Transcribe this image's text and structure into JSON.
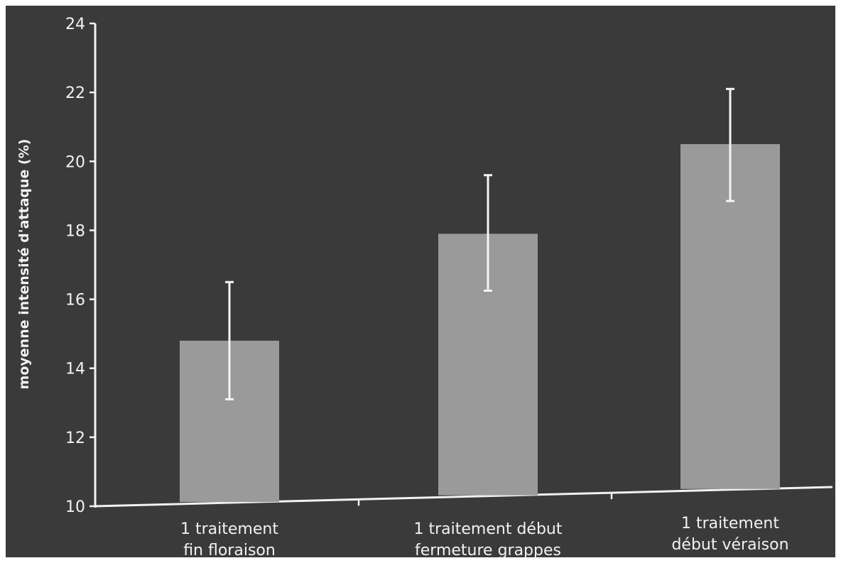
{
  "chart_data": {
    "type": "bar",
    "title": "",
    "ylabel": "moyenne intensité d'attaque (%)",
    "xlabel": "",
    "ylim": [
      10,
      24
    ],
    "yticks": [
      10,
      12,
      14,
      16,
      18,
      20,
      22,
      24
    ],
    "grid": false,
    "categories": [
      [
        "1 traitement",
        "fin floraison"
      ],
      [
        "1 traitement début",
        "fermeture grappes"
      ],
      [
        "1 traitement",
        "début véraison"
      ]
    ],
    "values": [
      14.8,
      17.9,
      20.5
    ],
    "error_bars": [
      [
        13.1,
        16.5
      ],
      [
        16.25,
        19.6
      ],
      [
        18.85,
        22.1
      ]
    ],
    "colors": {
      "background": "#3a3a3a",
      "bar": "#9a9a9a",
      "axis": "#f2f2f2",
      "text": "#f2f2f2"
    }
  }
}
